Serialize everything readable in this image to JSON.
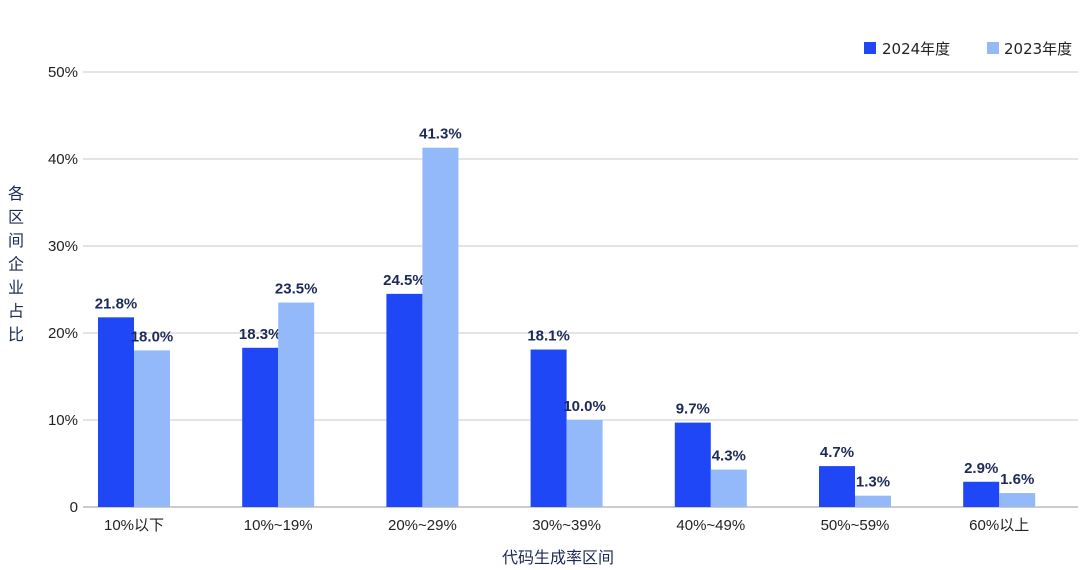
{
  "chart_data": {
    "type": "bar",
    "categories": [
      "10%以下",
      "10%~19%",
      "20%~29%",
      "30%~39%",
      "40%~49%",
      "50%~59%",
      "60%以上"
    ],
    "series": [
      {
        "name": "2024年度",
        "color": "#1f47f5",
        "values": [
          21.8,
          18.3,
          24.5,
          18.1,
          9.7,
          4.7,
          2.9
        ],
        "labels": [
          "21.8%",
          "18.3%",
          "24.5%",
          "18.1%",
          "9.7%",
          "4.7%",
          "2.9%"
        ]
      },
      {
        "name": "2023年度",
        "color": "#93b9fb",
        "values": [
          18.0,
          23.5,
          41.3,
          10.0,
          4.3,
          1.3,
          1.6
        ],
        "labels": [
          "18.0%",
          "23.5%",
          "41.3%",
          "10.0%",
          "4.3%",
          "1.3%",
          "1.6%"
        ]
      }
    ],
    "xlabel": "代码生成率区间",
    "ylabel": "各区间企业占比",
    "ylim": [
      0,
      50
    ],
    "yticks": [
      {
        "value": 0,
        "label": "0"
      },
      {
        "value": 10,
        "label": "10%"
      },
      {
        "value": 20,
        "label": "20%"
      },
      {
        "value": 30,
        "label": "30%"
      },
      {
        "value": 40,
        "label": "40%"
      },
      {
        "value": 50,
        "label": "50%"
      }
    ],
    "grid": true,
    "legend_position": "top-right",
    "grid_color": "#c8c8c8"
  }
}
